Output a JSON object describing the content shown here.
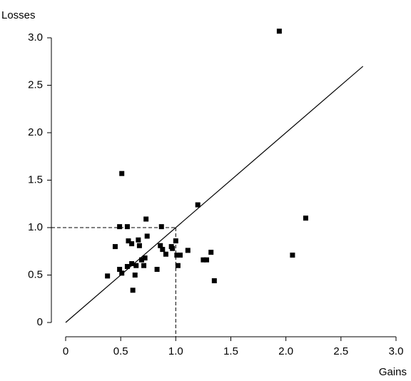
{
  "chart_data": {
    "type": "scatter",
    "x_label": "Gains",
    "y_label": "Losses",
    "x": [
      1.94,
      0.51,
      1.2,
      2.18,
      0.73,
      0.49,
      0.56,
      0.87,
      0.74,
      0.45,
      0.57,
      0.66,
      1.0,
      0.6,
      0.67,
      0.86,
      0.96,
      0.97,
      0.88,
      1.11,
      1.32,
      0.91,
      2.06,
      1.01,
      1.04,
      0.72,
      1.25,
      1.28,
      0.69,
      0.6,
      0.64,
      0.71,
      0.56,
      1.02,
      0.83,
      0.49,
      0.51,
      0.63,
      0.38,
      0.61,
      1.35
    ],
    "values": [
      3.07,
      1.57,
      1.24,
      1.1,
      1.09,
      1.01,
      1.01,
      1.01,
      0.91,
      0.8,
      0.86,
      0.87,
      0.86,
      0.83,
      0.81,
      0.81,
      0.8,
      0.78,
      0.77,
      0.76,
      0.74,
      0.72,
      0.71,
      0.71,
      0.71,
      0.68,
      0.66,
      0.66,
      0.66,
      0.62,
      0.6,
      0.6,
      0.59,
      0.6,
      0.56,
      0.56,
      0.52,
      0.5,
      0.49,
      0.34,
      0.44
    ],
    "color": "#000000",
    "xlim": [
      0,
      3
    ],
    "ylim": [
      0,
      3
    ],
    "xticks": [
      0,
      0.5,
      {
        "value": 1,
        "label": "1.0"
      },
      1.5,
      {
        "value": 2,
        "label": "2.0"
      },
      2.5,
      {
        "value": 3,
        "label": "3.0"
      }
    ],
    "yticks": [
      0,
      0.5,
      {
        "value": 1,
        "label": "1.0"
      },
      1.5,
      {
        "value": 2,
        "label": "2.0"
      },
      2.5,
      {
        "value": 3,
        "label": "3.0"
      }
    ],
    "diagonal": [
      0,
      2.7
    ],
    "guides": {
      "x": 1,
      "y": 1
    }
  }
}
